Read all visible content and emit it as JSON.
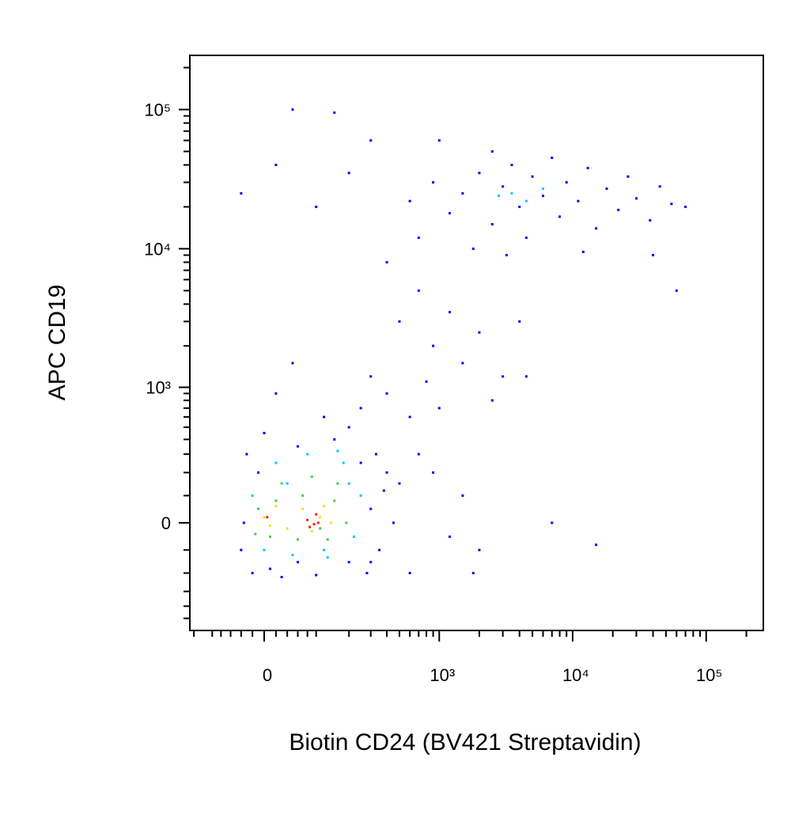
{
  "chart_data": {
    "type": "scatter",
    "x_label": "Biotin CD24 (BV421 Streptavidin)",
    "y_label": "APC CD19",
    "xscale": {
      "type": "asinh",
      "cofactor": 98
    },
    "yscale": {
      "type": "asinh",
      "cofactor": 215
    },
    "xlim": [
      -163,
      268000
    ],
    "ylim": [
      -620,
      245000
    ],
    "xticks": [
      0,
      {
        "value": 1000,
        "label": "10³"
      },
      {
        "value": 10000,
        "label": "10⁴"
      },
      {
        "value": 100000,
        "label": "10⁵"
      }
    ],
    "yticks": [
      0,
      {
        "value": 1000,
        "label": "10³"
      },
      {
        "value": 10000,
        "label": "10⁴"
      },
      {
        "value": 100000,
        "label": "10⁵"
      }
    ],
    "xminorticks": [
      -150,
      -100,
      -80,
      -60,
      -40,
      -20,
      20,
      40,
      60,
      80,
      100,
      200,
      300,
      400,
      500,
      600,
      700,
      800,
      900,
      2000,
      3000,
      4000,
      5000,
      6000,
      7000,
      8000,
      9000,
      20000,
      30000,
      40000,
      50000,
      60000,
      70000,
      80000,
      90000,
      200000
    ],
    "yminorticks": [
      -500,
      -400,
      -300,
      -200,
      -100,
      100,
      200,
      300,
      400,
      500,
      600,
      700,
      800,
      900,
      2000,
      3000,
      4000,
      5000,
      6000,
      7000,
      8000,
      9000,
      20000,
      30000,
      40000,
      50000,
      60000,
      70000,
      80000,
      90000,
      200000
    ],
    "series": [
      {
        "color": "#0000ff",
        "x": [
          600,
          900,
          1200,
          1500,
          2000,
          2500,
          3000,
          3500,
          4000,
          4500,
          5000,
          6000,
          7000,
          8000,
          9000,
          11000,
          13000,
          15000,
          18000,
          22000,
          26000,
          30000,
          38000,
          45000,
          55000,
          70000,
          1800,
          3200,
          700,
          2500,
          12000,
          40000,
          1000,
          -40,
          20,
          50,
          150,
          200,
          300,
          100,
          400,
          500,
          700,
          900,
          1200,
          1500,
          2000,
          2500,
          3000,
          4000,
          4500,
          1000,
          800,
          600,
          400,
          300,
          250,
          50,
          20,
          700,
          900,
          1200,
          1500,
          2000,
          7000,
          15000,
          1800,
          600,
          500,
          60000,
          300,
          -40,
          -30,
          -20,
          0,
          30,
          60,
          100,
          150,
          200,
          250,
          300,
          350,
          400,
          450,
          200,
          120,
          -10,
          -35,
          60,
          10,
          280,
          330,
          380
        ],
        "y": [
          22000,
          30000,
          18000,
          25000,
          35000,
          15000,
          28000,
          40000,
          20000,
          12000,
          33000,
          24000,
          45000,
          17000,
          30000,
          22000,
          38000,
          14000,
          27000,
          19000,
          33000,
          23000,
          16000,
          28000,
          21000,
          20000,
          10000,
          9000,
          12000,
          50000,
          9500,
          9000,
          60000,
          25000,
          40000,
          100000,
          95000,
          35000,
          60000,
          20000,
          8000,
          3000,
          5000,
          2000,
          3500,
          1500,
          2500,
          800,
          1200,
          3000,
          1200,
          700,
          1100,
          600,
          900,
          1200,
          700,
          1500,
          900,
          300,
          200,
          -50,
          100,
          -100,
          0,
          -80,
          -200,
          -200,
          150,
          5000,
          -150,
          -100,
          300,
          -200,
          450,
          -220,
          350,
          -210,
          400,
          -150,
          250,
          50,
          -100,
          200,
          0,
          500,
          600,
          200,
          0,
          -150,
          -180,
          -200,
          300,
          120
        ]
      },
      {
        "color": "#00c8ff",
        "x": [
          -20,
          0,
          20,
          50,
          80,
          130,
          180,
          220,
          250,
          160,
          40,
          3500,
          4500,
          2800,
          6000,
          120,
          200
        ],
        "y": [
          100,
          -100,
          250,
          -120,
          300,
          -130,
          250,
          -50,
          100,
          320,
          150,
          25000,
          22000,
          24000,
          27000,
          -100,
          150
        ]
      },
      {
        "color": "#40d040",
        "x": [
          -10,
          10,
          30,
          60,
          90,
          130,
          160,
          190,
          20,
          70,
          110,
          150,
          -15
        ],
        "y": [
          50,
          -50,
          150,
          -60,
          180,
          -60,
          150,
          0,
          80,
          100,
          -20,
          80,
          -40
        ]
      },
      {
        "color": "#f0e020",
        "x": [
          0,
          20,
          40,
          70,
          90,
          120,
          140,
          10,
          110
        ],
        "y": [
          20,
          60,
          -20,
          50,
          -30,
          60,
          0,
          -10,
          20
        ]
      },
      {
        "color": "#ff2000",
        "x": [
          80,
          95,
          100,
          85,
          105,
          5
        ],
        "y": [
          10,
          -5,
          30,
          -15,
          0,
          20
        ]
      }
    ]
  }
}
